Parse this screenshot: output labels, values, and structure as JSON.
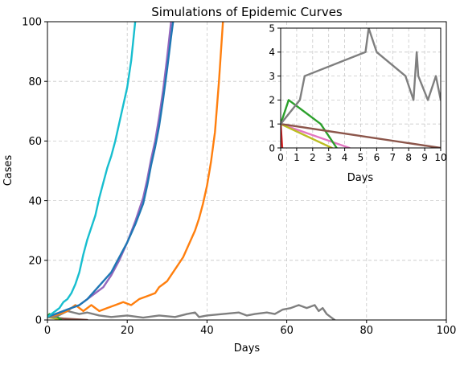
{
  "chart_data": [
    {
      "type": "line",
      "title": "Simulations of Epidemic Curves",
      "xlabel": "Days",
      "ylabel": "Cases",
      "xlim": [
        0,
        100
      ],
      "ylim": [
        0,
        100
      ],
      "xticks": [
        "0",
        "20",
        "40",
        "60",
        "80",
        "100"
      ],
      "yticks": [
        "0",
        "20",
        "40",
        "60",
        "80",
        "100"
      ],
      "grid": true,
      "series": [
        {
          "color": "#e377c2",
          "points": [
            [
              0,
              1
            ],
            [
              3,
              0.3
            ],
            [
              5,
              0
            ]
          ]
        },
        {
          "color": "#8c564b",
          "points": [
            [
              0,
              1
            ],
            [
              4,
              0.5
            ],
            [
              10,
              0
            ]
          ]
        },
        {
          "color": "#bcbd22",
          "points": [
            [
              0,
              1
            ],
            [
              2,
              0.5
            ],
            [
              3,
              0
            ]
          ]
        },
        {
          "color": "#2ca02c",
          "points": [
            [
              0,
              1
            ],
            [
              0.5,
              2
            ],
            [
              2.5,
              1
            ],
            [
              3.5,
              0
            ]
          ]
        },
        {
          "color": "#7f7f7f",
          "points": [
            [
              0,
              1
            ],
            [
              2,
              1
            ],
            [
              5,
              3
            ],
            [
              8,
              2
            ],
            [
              10,
              2.5
            ],
            [
              13,
              1.5
            ],
            [
              16,
              1
            ],
            [
              20,
              1.5
            ],
            [
              24,
              0.8
            ],
            [
              28,
              1.5
            ],
            [
              32,
              1
            ],
            [
              35,
              2
            ],
            [
              37,
              2.5
            ],
            [
              38,
              1
            ],
            [
              40,
              1.5
            ],
            [
              44,
              2
            ],
            [
              48,
              2.5
            ],
            [
              50,
              1.5
            ],
            [
              52,
              2
            ],
            [
              55,
              2.5
            ],
            [
              57,
              2
            ],
            [
              59,
              3.5
            ],
            [
              61,
              4
            ],
            [
              63,
              5
            ],
            [
              65,
              4
            ],
            [
              67,
              5
            ],
            [
              68,
              3
            ],
            [
              69,
              4
            ],
            [
              70,
              2
            ],
            [
              71,
              1
            ],
            [
              72,
              0
            ]
          ]
        },
        {
          "color": "#ff7f0e",
          "points": [
            [
              0,
              1
            ],
            [
              3,
              2
            ],
            [
              5,
              3
            ],
            [
              7,
              5
            ],
            [
              9,
              3
            ],
            [
              11,
              5
            ],
            [
              13,
              3
            ],
            [
              15,
              4
            ],
            [
              17,
              5
            ],
            [
              19,
              6
            ],
            [
              21,
              5
            ],
            [
              23,
              7
            ],
            [
              25,
              8
            ],
            [
              27,
              9
            ],
            [
              28,
              11
            ],
            [
              29,
              12
            ],
            [
              30,
              13
            ],
            [
              31,
              15
            ],
            [
              32,
              17
            ],
            [
              33,
              19
            ],
            [
              34,
              21
            ],
            [
              35,
              24
            ],
            [
              36,
              27
            ],
            [
              37,
              30
            ],
            [
              38,
              34
            ],
            [
              39,
              39
            ],
            [
              40,
              45
            ],
            [
              41,
              53
            ],
            [
              42,
              63
            ],
            [
              43,
              80
            ],
            [
              44,
              100
            ]
          ]
        },
        {
          "color": "#9467bd",
          "points": [
            [
              0,
              1
            ],
            [
              2,
              2
            ],
            [
              4,
              3
            ],
            [
              6,
              4
            ],
            [
              8,
              5
            ],
            [
              10,
              7
            ],
            [
              12,
              9
            ],
            [
              14,
              11
            ],
            [
              16,
              15
            ],
            [
              18,
              20
            ],
            [
              20,
              26
            ],
            [
              22,
              33
            ],
            [
              24,
              41
            ],
            [
              25,
              47
            ],
            [
              26,
              54
            ],
            [
              27,
              60
            ],
            [
              28,
              68
            ],
            [
              29,
              77
            ],
            [
              30,
              88
            ],
            [
              31,
              100
            ]
          ]
        },
        {
          "color": "#1f77b4",
          "points": [
            [
              0,
              1
            ],
            [
              2,
              2
            ],
            [
              4,
              3
            ],
            [
              6,
              4
            ],
            [
              8,
              5
            ],
            [
              10,
              7
            ],
            [
              12,
              10
            ],
            [
              14,
              13
            ],
            [
              16,
              16
            ],
            [
              18,
              21
            ],
            [
              20,
              26
            ],
            [
              22,
              32
            ],
            [
              24,
              39
            ],
            [
              25,
              45
            ],
            [
              26,
              52
            ],
            [
              27,
              58
            ],
            [
              28,
              65
            ],
            [
              29,
              74
            ],
            [
              30,
              84
            ],
            [
              31,
              95
            ],
            [
              31.5,
              100
            ]
          ]
        },
        {
          "color": "#17becf",
          "points": [
            [
              0,
              1
            ],
            [
              1,
              2
            ],
            [
              2,
              3
            ],
            [
              3,
              4
            ],
            [
              4,
              6
            ],
            [
              5,
              7
            ],
            [
              6,
              9
            ],
            [
              7,
              12
            ],
            [
              8,
              16
            ],
            [
              9,
              22
            ],
            [
              10,
              27
            ],
            [
              11,
              31
            ],
            [
              12,
              35
            ],
            [
              13,
              41
            ],
            [
              14,
              46
            ],
            [
              15,
              51
            ],
            [
              16,
              55
            ],
            [
              17,
              60
            ],
            [
              18,
              66
            ],
            [
              19,
              72
            ],
            [
              20,
              78
            ],
            [
              21,
              87
            ],
            [
              22,
              100
            ]
          ]
        }
      ]
    },
    {
      "type": "line",
      "xlabel": "Days",
      "xlim": [
        0,
        10
      ],
      "ylim": [
        0,
        5
      ],
      "xticks": [
        "0",
        "1",
        "2",
        "3",
        "4",
        "5",
        "6",
        "7",
        "8",
        "9",
        "10"
      ],
      "yticks": [
        "0",
        "1",
        "2",
        "3",
        "4",
        "5"
      ],
      "grid": true,
      "series": [
        {
          "color": "#d62728",
          "points": [
            [
              0,
              1
            ],
            [
              0.1,
              0
            ]
          ]
        },
        {
          "color": "#e377c2",
          "points": [
            [
              0,
              1
            ],
            [
              4.3,
              0
            ]
          ]
        },
        {
          "color": "#bcbd22",
          "points": [
            [
              0,
              1
            ],
            [
              3.2,
              0
            ]
          ]
        },
        {
          "color": "#2ca02c",
          "points": [
            [
              0,
              1
            ],
            [
              0.5,
              2
            ],
            [
              2.5,
              1
            ],
            [
              3.5,
              0
            ]
          ]
        },
        {
          "color": "#8c564b",
          "points": [
            [
              0,
              1
            ],
            [
              10,
              0
            ]
          ]
        },
        {
          "color": "#7f7f7f",
          "points": [
            [
              0,
              1
            ],
            [
              1.2,
              2
            ],
            [
              1.5,
              3
            ],
            [
              5.3,
              4
            ],
            [
              5.5,
              5
            ],
            [
              6,
              4
            ],
            [
              7.8,
              3
            ],
            [
              8.3,
              2
            ],
            [
              8.4,
              3
            ],
            [
              8.5,
              4
            ],
            [
              8.6,
              3
            ],
            [
              9.2,
              2
            ],
            [
              9.7,
              3
            ],
            [
              10,
              2
            ]
          ]
        }
      ]
    }
  ]
}
